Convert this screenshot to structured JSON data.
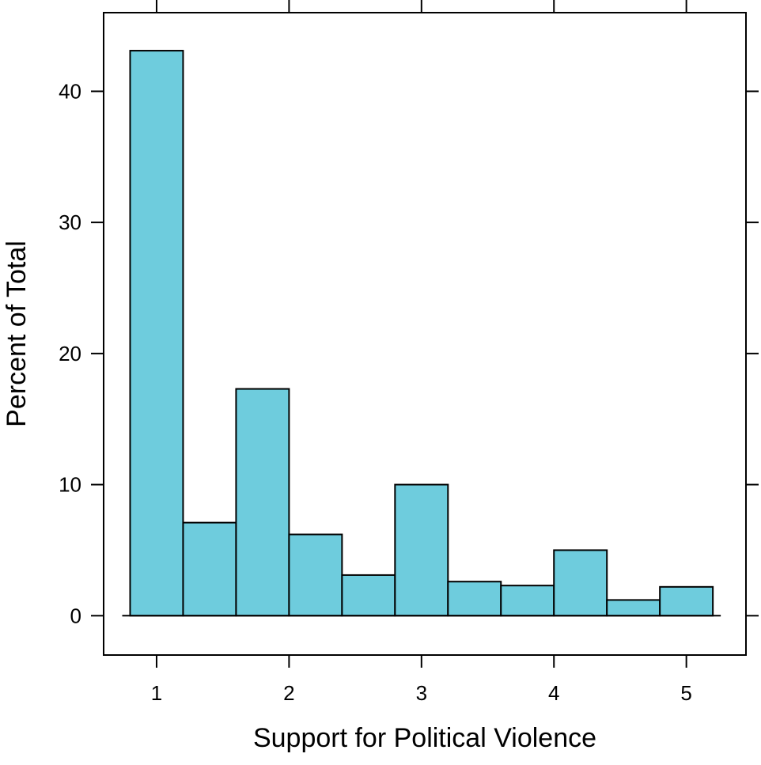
{
  "chart_data": {
    "type": "bar",
    "subtype": "histogram",
    "title": "",
    "xlabel": "Support for Political Violence",
    "ylabel": "Percent of Total",
    "bin_edges": [
      0.8,
      1.2,
      1.6,
      2.0,
      2.4,
      2.8,
      3.2,
      3.6,
      4.0,
      4.4,
      4.8,
      5.2
    ],
    "values": [
      43.1,
      7.1,
      17.3,
      6.2,
      3.1,
      10.0,
      2.6,
      2.3,
      5.0,
      1.2,
      2.2
    ],
    "xlim": [
      0.6,
      5.45
    ],
    "ylim": [
      -3,
      46
    ],
    "x_ticks": [
      1,
      2,
      3,
      4,
      5
    ],
    "y_ticks": [
      0,
      10,
      20,
      30,
      40
    ],
    "bar_fill": "#6ECCDD",
    "bar_stroke": "#000000",
    "grid": false,
    "legend": "none"
  }
}
